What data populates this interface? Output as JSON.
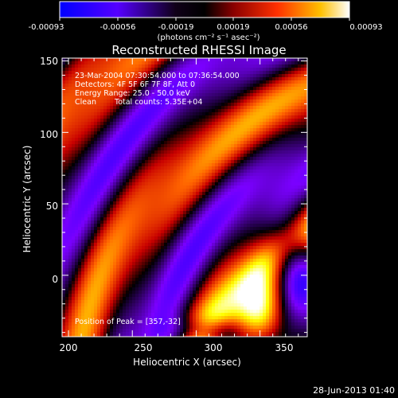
{
  "colorbar": {
    "tick_labels": [
      "-0.00093",
      "-0.00056",
      "-0.00019",
      "0.00019",
      "0.00056",
      "0.00093"
    ],
    "unit_label": "(photons cm⁻² s⁻¹ asec⁻²)",
    "range": [
      -0.00093,
      0.00093
    ]
  },
  "plot": {
    "title": "Reconstructed RHESSI Image",
    "xlabel": "Heliocentric X (arcsec)",
    "ylabel": "Heliocentric Y (arcsec)",
    "xticks": [
      "200",
      "250",
      "300",
      "350"
    ],
    "yticks": [
      "150",
      "100",
      "50",
      "0"
    ],
    "xlim": [
      195,
      387
    ],
    "ylim": [
      -43,
      152
    ]
  },
  "info": {
    "time_range": "23-Mar-2004 07:30:54.000 to 07:36:54.000",
    "detectors": "Detectors: 4F 5F 6F 7F 8F, Att 0",
    "energy": "Energy Range: 25.0 - 50.0 keV",
    "method": "Clean",
    "counts": "Total counts: 5.35E+04",
    "peak": "Position of Peak = [357,-32]"
  },
  "footer": {
    "date": "28-Jun-2013 01:40"
  },
  "chart_data": {
    "type": "heatmap",
    "title": "Reconstructed RHESSI Image",
    "xlabel": "Heliocentric X (arcsec)",
    "ylabel": "Heliocentric Y (arcsec)",
    "xlim": [
      195,
      387
    ],
    "ylim": [
      -43,
      152
    ],
    "peak": [
      357,
      -32
    ],
    "color_range": [
      -0.00093,
      0.00093
    ],
    "colormap": [
      "#0000ff",
      "#7a00ff",
      "#000000",
      "#c80000",
      "#ff6400",
      "#ffff00",
      "#ffffff"
    ]
  }
}
